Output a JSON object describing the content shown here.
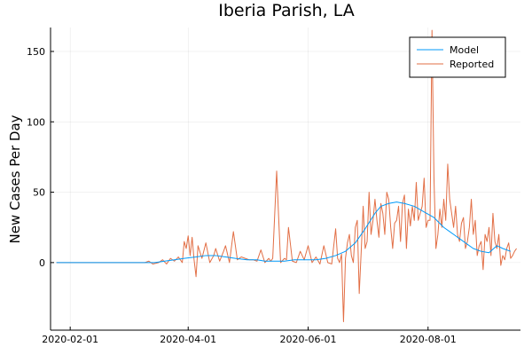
{
  "chart_data": {
    "type": "line",
    "title": "Iberia Parish, LA",
    "xlabel": "",
    "ylabel": "New Cases Per Day",
    "xlim": [
      "2020-01-22",
      "2020-09-17"
    ],
    "ylim": [
      -48,
      167
    ],
    "x_ticks": [
      "2020-02-01",
      "2020-04-01",
      "2020-06-01",
      "2020-08-01"
    ],
    "y_ticks": [
      0,
      50,
      100,
      150
    ],
    "grid": true,
    "legend_position": "top-right",
    "series": [
      {
        "name": "Model",
        "color": "#009AFA",
        "x": [
          "2020-01-25",
          "2020-03-10",
          "2020-03-15",
          "2020-03-20",
          "2020-03-25",
          "2020-03-30",
          "2020-04-05",
          "2020-04-10",
          "2020-04-15",
          "2020-04-20",
          "2020-04-25",
          "2020-05-01",
          "2020-05-06",
          "2020-05-10",
          "2020-05-15",
          "2020-05-20",
          "2020-05-25",
          "2020-05-31",
          "2020-06-05",
          "2020-06-10",
          "2020-06-15",
          "2020-06-20",
          "2020-06-25",
          "2020-06-30",
          "2020-07-05",
          "2020-07-08",
          "2020-07-12",
          "2020-07-16",
          "2020-07-20",
          "2020-07-25",
          "2020-07-30",
          "2020-08-04",
          "2020-08-09",
          "2020-08-14",
          "2020-08-19",
          "2020-08-24",
          "2020-08-28",
          "2020-09-01",
          "2020-09-05",
          "2020-09-08",
          "2020-09-12"
        ],
        "values": [
          0,
          0,
          0,
          1,
          2,
          3,
          4,
          5,
          5,
          4,
          3,
          2,
          2,
          1,
          1,
          1,
          2,
          2,
          2,
          3,
          5,
          8,
          14,
          24,
          35,
          40,
          42,
          43,
          42,
          40,
          36,
          32,
          25,
          20,
          15,
          10,
          8,
          7,
          12,
          10,
          8
        ]
      },
      {
        "name": "Reported",
        "color": "#E26F46",
        "x": [
          "2020-01-25",
          "2020-03-08",
          "2020-03-10",
          "2020-03-12",
          "2020-03-14",
          "2020-03-17",
          "2020-03-19",
          "2020-03-21",
          "2020-03-23",
          "2020-03-25",
          "2020-03-27",
          "2020-03-29",
          "2020-03-30",
          "2020-03-31",
          "2020-04-01",
          "2020-04-02",
          "2020-04-03",
          "2020-04-04",
          "2020-04-05",
          "2020-04-06",
          "2020-04-08",
          "2020-04-10",
          "2020-04-12",
          "2020-04-14",
          "2020-04-15",
          "2020-04-17",
          "2020-04-19",
          "2020-04-20",
          "2020-04-22",
          "2020-04-24",
          "2020-04-26",
          "2020-04-28",
          "2020-04-30",
          "2020-05-02",
          "2020-05-04",
          "2020-05-06",
          "2020-05-08",
          "2020-05-10",
          "2020-05-12",
          "2020-05-13",
          "2020-05-14",
          "2020-05-16",
          "2020-05-18",
          "2020-05-20",
          "2020-05-21",
          "2020-05-22",
          "2020-05-24",
          "2020-05-26",
          "2020-05-28",
          "2020-05-30",
          "2020-06-01",
          "2020-06-03",
          "2020-06-05",
          "2020-06-07",
          "2020-06-09",
          "2020-06-11",
          "2020-06-13",
          "2020-06-15",
          "2020-06-16",
          "2020-06-17",
          "2020-06-18",
          "2020-06-19",
          "2020-06-20",
          "2020-06-21",
          "2020-06-22",
          "2020-06-23",
          "2020-06-24",
          "2020-06-25",
          "2020-06-26",
          "2020-06-27",
          "2020-06-28",
          "2020-06-29",
          "2020-06-30",
          "2020-07-01",
          "2020-07-02",
          "2020-07-03",
          "2020-07-04",
          "2020-07-05",
          "2020-07-06",
          "2020-07-07",
          "2020-07-08",
          "2020-07-09",
          "2020-07-10",
          "2020-07-11",
          "2020-07-12",
          "2020-07-13",
          "2020-07-14",
          "2020-07-15",
          "2020-07-16",
          "2020-07-17",
          "2020-07-18",
          "2020-07-19",
          "2020-07-20",
          "2020-07-21",
          "2020-07-22",
          "2020-07-23",
          "2020-07-24",
          "2020-07-25",
          "2020-07-26",
          "2020-07-27",
          "2020-07-28",
          "2020-07-29",
          "2020-07-30",
          "2020-07-31",
          "2020-08-01",
          "2020-08-02",
          "2020-08-03",
          "2020-08-04",
          "2020-08-05",
          "2020-08-06",
          "2020-08-07",
          "2020-08-08",
          "2020-08-09",
          "2020-08-10",
          "2020-08-11",
          "2020-08-12",
          "2020-08-13",
          "2020-08-14",
          "2020-08-15",
          "2020-08-16",
          "2020-08-17",
          "2020-08-18",
          "2020-08-19",
          "2020-08-20",
          "2020-08-21",
          "2020-08-22",
          "2020-08-23",
          "2020-08-24",
          "2020-08-25",
          "2020-08-26",
          "2020-08-27",
          "2020-08-28",
          "2020-08-29",
          "2020-08-30",
          "2020-08-31",
          "2020-09-01",
          "2020-09-02",
          "2020-09-03",
          "2020-09-04",
          "2020-09-05",
          "2020-09-06",
          "2020-09-07",
          "2020-09-08",
          "2020-09-09",
          "2020-09-10",
          "2020-09-11",
          "2020-09-12",
          "2020-09-13",
          "2020-09-14",
          "2020-09-15"
        ],
        "values": [
          0,
          0,
          0,
          1,
          -1,
          0,
          2,
          -1,
          3,
          1,
          4,
          0,
          15,
          10,
          19,
          5,
          18,
          2,
          -10,
          12,
          3,
          14,
          0,
          5,
          10,
          1,
          8,
          12,
          0,
          22,
          2,
          4,
          3,
          2,
          2,
          1,
          9,
          0,
          3,
          1,
          3,
          65,
          0,
          3,
          2,
          25,
          1,
          0,
          8,
          2,
          12,
          0,
          4,
          -1,
          12,
          0,
          -1,
          24,
          3,
          0,
          6,
          -42,
          3,
          14,
          20,
          5,
          0,
          25,
          30,
          -22,
          8,
          40,
          10,
          15,
          50,
          20,
          30,
          45,
          30,
          18,
          42,
          35,
          20,
          50,
          45,
          25,
          10,
          28,
          30,
          40,
          15,
          42,
          48,
          10,
          38,
          26,
          40,
          30,
          57,
          30,
          35,
          40,
          60,
          25,
          30,
          30,
          165,
          60,
          10,
          20,
          38,
          25,
          45,
          30,
          70,
          45,
          35,
          25,
          40,
          20,
          15,
          28,
          32,
          10,
          15,
          25,
          45,
          20,
          30,
          5,
          12,
          15,
          -5,
          20,
          15,
          25,
          5,
          35,
          15,
          10,
          20,
          -2,
          5,
          2,
          10,
          14,
          3,
          5,
          8,
          10
        ]
      }
    ]
  }
}
